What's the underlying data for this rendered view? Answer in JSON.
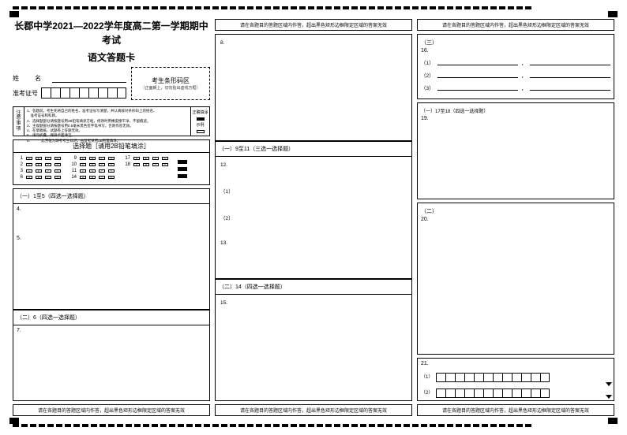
{
  "header": {
    "title_line1": "长郡中学2021—2022学年度高二第一学期期中考试",
    "title_line2": "语文答题卡"
  },
  "identity": {
    "name_label": "姓　名",
    "ticket_label": "准考证号",
    "ticket_cells": 9,
    "barcode_title": "考生条形码区",
    "barcode_sub": "（正面朝上，切勿贴出虚线方框）"
  },
  "notice": {
    "side_label": "注意事项",
    "lines": [
      "1．答题前，考生先将自己的姓名、准考证号写清楚，并认真核对条形码上的姓名、",
      "　准考证号和科目。",
      "2．选择题部分请按题号用2B铅笔填涂方框，修改时用橡皮擦干净，不留痕迹。",
      "3．主观题部分请按题号用0.5毫米黑色签字笔书写，否则作答无效。",
      "4．在草稿纸、试题卷上答题无效。",
      "5．请勿折叠，保持卡面清洁。",
      "6．　　　此方框为缺考考生标记，由监考员用2B铅笔填涂。"
    ],
    "right_labels": [
      "正确填涂",
      "示例"
    ]
  },
  "mc": {
    "header": "选择题［请用2B铅笔填涂］",
    "groups": [
      {
        "start": 1,
        "rows": [
          1,
          2,
          3,
          6
        ]
      },
      {
        "start": 9,
        "rows": [
          9,
          10,
          11,
          14
        ]
      },
      {
        "start": 17,
        "rows": [
          17,
          18
        ]
      }
    ],
    "options": [
      "A",
      "B",
      "C",
      "D"
    ]
  },
  "col1_sections": [
    {
      "hdr": "（一）1至5（四选一选择题）",
      "qs": [
        "4.",
        "5."
      ],
      "grow": true
    },
    {
      "hdr": "（二）6（四选一选择题）",
      "qs": [
        "7."
      ],
      "grow": true
    }
  ],
  "col2": {
    "top_warn": "请在各题目的答题区域内作答，超出黑色矩形边框限定区域的答案无效",
    "sections": [
      {
        "hdr": "",
        "qs": [
          "8."
        ],
        "grow": true
      },
      {
        "hdr": "（一）9至11（三选一选择题）",
        "qs": [
          "12.",
          "（1）",
          "（2）",
          "13."
        ],
        "grow": true
      },
      {
        "hdr": "（二）14（四选一选择题）",
        "qs": [
          "15."
        ],
        "grow": true
      }
    ]
  },
  "col3": {
    "top_warn": "请在各题目的答题区域内作答，超出黑色矩形边框限定区域的答案无效",
    "sec_three_label": "（三）",
    "q16": "16.",
    "fill_labels": [
      "（1）",
      "（2）",
      "（3）"
    ],
    "sec_one_label": "（一）17至18（四选一选择题）",
    "q19": "19.",
    "sec_two_label": "（二）",
    "q20": "20.",
    "q21": "21.",
    "grid_labels": [
      "（1）",
      "（2）"
    ],
    "grid_cells": 12
  },
  "bottom_warn": "请在各题目的答题区域内作答，超出黑色矩形边框限定区域的答案无效"
}
